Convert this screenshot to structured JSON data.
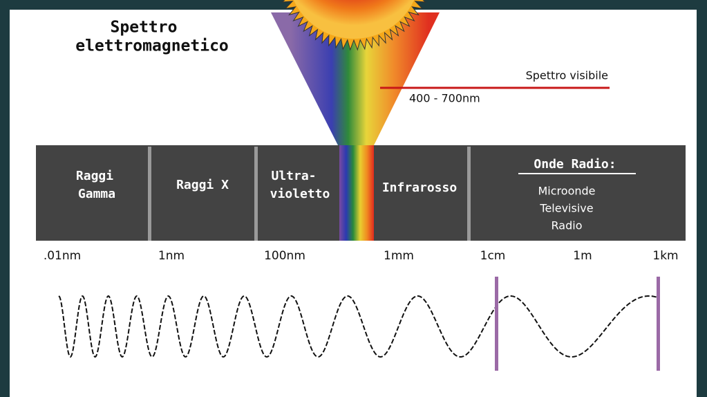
{
  "title": [
    "Spettro",
    "elettromagnetico"
  ],
  "visible": {
    "label": "Spettro visibile",
    "range": "400 - 700nm"
  },
  "bands": [
    [
      "Raggi",
      "Gamma"
    ],
    [
      "Raggi X"
    ],
    [
      "Ultra-",
      "violetto"
    ],
    [
      "Infrarosso"
    ]
  ],
  "radio": {
    "heading": "Onde Radio:",
    "items": [
      "Microonde",
      "Televisive",
      "Radio"
    ]
  },
  "scale": [
    ".01nm",
    "1nm",
    "100nm",
    "1mm",
    "1cm",
    "1m",
    "1km"
  ]
}
